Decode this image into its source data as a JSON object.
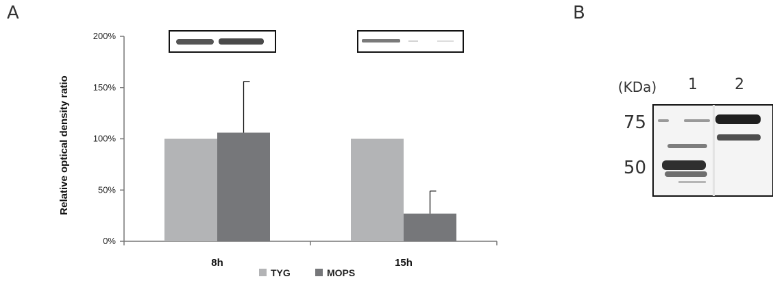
{
  "panels": {
    "a_label": "A",
    "b_label": "B"
  },
  "chart_data": {
    "type": "bar",
    "categories": [
      "8h",
      "15h"
    ],
    "series": [
      {
        "name": "TYG",
        "values": [
          100,
          100
        ],
        "errors": [
          0,
          0
        ]
      },
      {
        "name": "MOPS",
        "values": [
          106,
          27
        ],
        "errors": [
          50,
          22
        ]
      }
    ],
    "colors": [
      "#b3b4b6",
      "#76777a"
    ],
    "ylabel": "Relative optical density ratio",
    "ylim": [
      0,
      200
    ],
    "yticks": [
      0,
      50,
      100,
      150,
      200
    ],
    "ytick_labels": [
      "0%",
      "50%",
      "100%",
      "150%",
      "200%"
    ],
    "grid": false,
    "legend_position": "bottom-center"
  },
  "gel": {
    "unit_label": "(KDa)",
    "lane_labels": [
      "1",
      "2"
    ],
    "markers": [
      "75",
      "50"
    ]
  }
}
